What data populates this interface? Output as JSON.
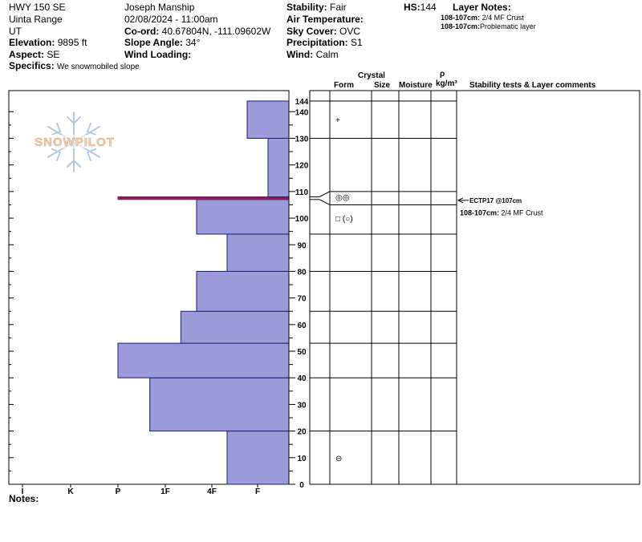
{
  "header": {
    "location": "HWY 150 SE",
    "range": "Uinta Range",
    "state": "UT",
    "elevation_label": "Elevation:",
    "elevation": "9895 ft",
    "aspect_label": "Aspect:",
    "aspect": "SE",
    "specifics_label": "Specifics:",
    "specifics": "We snowmobiled slope",
    "observer": "Joseph Manship",
    "datetime": "02/08/2024 - 11:00am",
    "coord_label": "Co-ord:",
    "coord": "40.67804N, -111.09602W",
    "slope_label": "Slope Angle:",
    "slope": "34°",
    "wind_loading_label": "Wind Loading:",
    "wind_loading": "",
    "stability_label": "Stability:",
    "stability": "Fair",
    "air_temp_label": "Air Temperature:",
    "air_temp": "",
    "sky_label": "Sky Cover:",
    "sky": "OVC",
    "precip_label": "Precipitation:",
    "precip": "S1",
    "wind_label": "Wind:",
    "wind": "Calm",
    "hs_label": "HS:",
    "hs": "144",
    "layer_notes_label": "Layer Notes:",
    "layer_notes": [
      {
        "range": "108-107cm:",
        "text": "2/4 MF Crust"
      },
      {
        "range": "108-107cm:",
        "text": "Problematic layer"
      }
    ]
  },
  "logo_text": "SNOWPILOT",
  "columns": {
    "crystal": "Crystal",
    "form": "Form",
    "size": "Size",
    "moisture": "Moisture",
    "rho": "ρ",
    "density_unit": "kg/m³",
    "comments": "Stability tests & Layer comments"
  },
  "notes_label": "Notes:",
  "colors": {
    "hardness_fill": "#9b9bd9",
    "hardness_stroke": "#1a1a7a",
    "weak_layer": "#8b1a5a"
  },
  "chart_data": {
    "type": "bar",
    "subtype": "snow-profile-hardness",
    "ylabel": "",
    "ylim": [
      0,
      144
    ],
    "yticks": [
      0,
      10,
      20,
      30,
      40,
      50,
      60,
      70,
      80,
      90,
      100,
      110,
      120,
      130,
      140,
      144
    ],
    "hardness_scale": [
      "I",
      "K",
      "P",
      "1F",
      "4F",
      "F"
    ],
    "layers": [
      {
        "bottom": 0,
        "top": 20,
        "hardness": "4F+"
      },
      {
        "bottom": 20,
        "top": 40,
        "hardness": "1F-"
      },
      {
        "bottom": 40,
        "top": 53,
        "hardness": "P"
      },
      {
        "bottom": 53,
        "top": 65,
        "hardness": "1F+"
      },
      {
        "bottom": 65,
        "top": 80,
        "hardness": "4F-"
      },
      {
        "bottom": 80,
        "top": 94,
        "hardness": "4F+"
      },
      {
        "bottom": 94,
        "top": 107,
        "hardness": "4F-"
      },
      {
        "bottom": 107,
        "top": 108,
        "hardness": "P",
        "weak_layer": true
      },
      {
        "bottom": 108,
        "top": 130,
        "hardness": "F+"
      },
      {
        "bottom": 130,
        "top": 144,
        "hardness": "F-"
      }
    ],
    "grain_symbols": [
      {
        "depth": 137,
        "symbol": "+"
      },
      {
        "depth": 108,
        "symbol": "◎◎"
      },
      {
        "depth": 100,
        "symbol": "□ (○)"
      },
      {
        "depth": 10,
        "symbol": "⊖"
      }
    ],
    "stability_tests": [
      {
        "depth": 107,
        "label": "ECTP17 @107cm"
      }
    ],
    "layer_comments": [
      {
        "depth": 102,
        "range": "108-107cm:",
        "text": "2/4 MF Crust"
      }
    ]
  }
}
